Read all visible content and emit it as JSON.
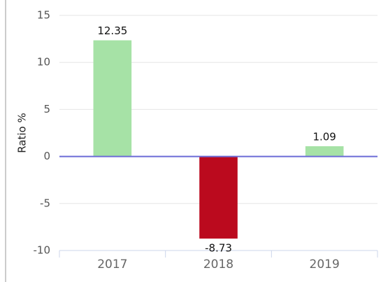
{
  "chart_data": {
    "type": "bar",
    "y_label": "Ratio %",
    "categories": [
      "2017",
      "2018",
      "2019"
    ],
    "values": [
      12.35,
      -8.73,
      1.09
    ],
    "colors": [
      "#a6e2a6",
      "#bb0a1e",
      "#a6e2a6"
    ],
    "zero_line_color": "#6b6bd6",
    "ylim": [
      -10,
      15
    ],
    "yticks": [
      -10,
      -5,
      0,
      5,
      10,
      15
    ],
    "grid": true
  }
}
